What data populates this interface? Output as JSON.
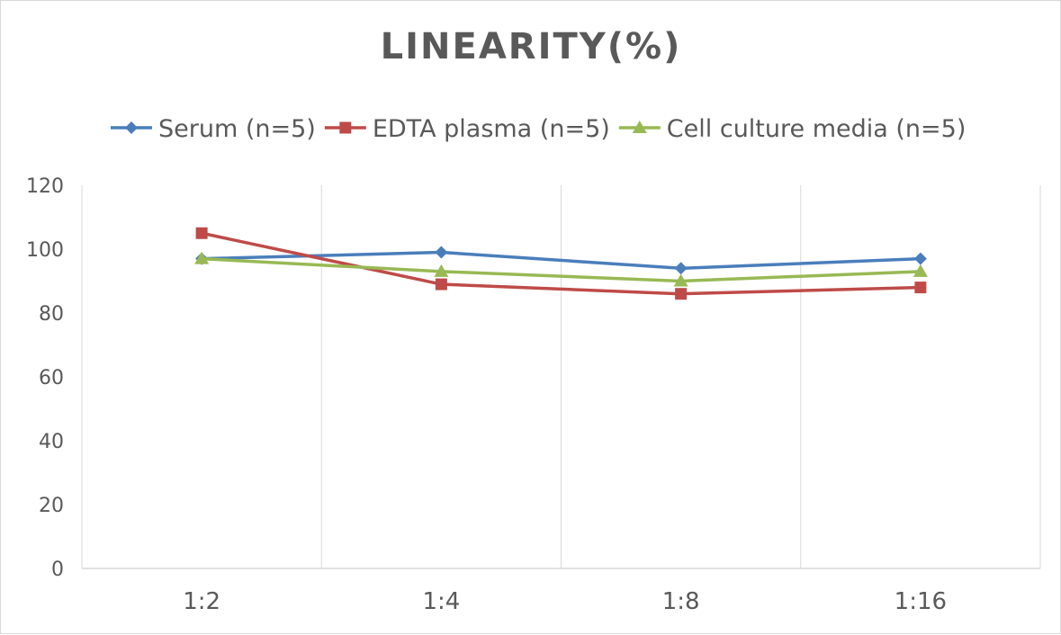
{
  "chart_data": {
    "type": "line",
    "title": "LINEARITY(%)",
    "xlabel": "",
    "ylabel": "",
    "categories": [
      "1:2",
      "1:4",
      "1:8",
      "1:16"
    ],
    "ylim": [
      0,
      120
    ],
    "yticks": [
      0,
      20,
      40,
      60,
      80,
      100,
      120
    ],
    "grid": "vertical",
    "legend_position": "top",
    "series": [
      {
        "name": "Serum (n=5)",
        "values": [
          97,
          99,
          94,
          97
        ],
        "color": "#4a7ebb",
        "marker": "diamond"
      },
      {
        "name": "EDTA plasma (n=5)",
        "values": [
          105,
          89,
          86,
          88
        ],
        "color": "#be4b48",
        "marker": "square"
      },
      {
        "name": "Cell culture media (n=5)",
        "values": [
          97,
          93,
          90,
          93
        ],
        "color": "#98b954",
        "marker": "triangle"
      }
    ]
  }
}
